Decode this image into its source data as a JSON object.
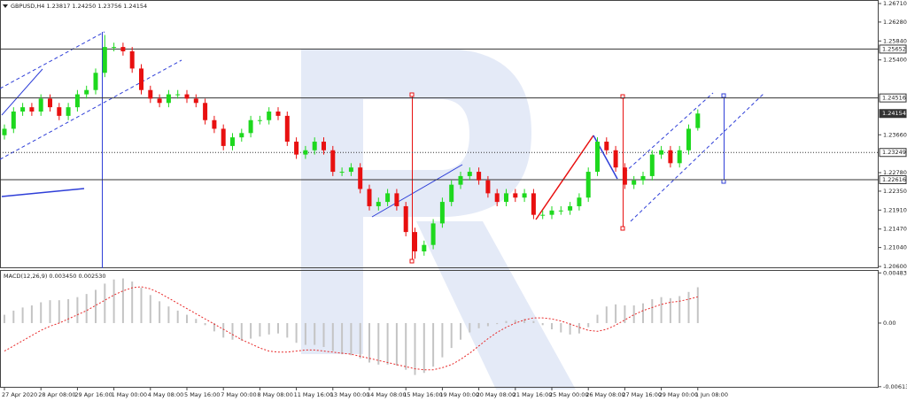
{
  "chart_data": [
    {
      "type": "candlestick",
      "title": "GBPUSD,H4 1.23817 1.24250 1.23756 1.24154",
      "categories": [
        "27 Apr 2020",
        null,
        null,
        null,
        "28 Apr 08:00",
        null,
        null,
        null,
        "29 Apr 16:00",
        null,
        null,
        null,
        "1 May 00:00",
        null,
        null,
        null,
        "4 May 08:00",
        null,
        null,
        null,
        "5 May 16:00",
        null,
        null,
        null,
        "7 May 00:00",
        null,
        null,
        null,
        "8 May 08:00",
        null,
        null,
        null,
        "11 May 16:00",
        null,
        null,
        null,
        "13 May 00:00",
        null,
        null,
        null,
        "14 May 08:00",
        null,
        null,
        null,
        "15 May 16:00",
        null,
        null,
        null,
        "19 May 00:00",
        null,
        null,
        null,
        "20 May 08:00",
        null,
        null,
        null,
        "21 May 16:00",
        null,
        null,
        null,
        "25 May 00:00",
        null,
        null,
        null,
        "26 May 08:00",
        null,
        null,
        null,
        "27 May 16:00",
        null,
        null,
        null,
        "29 May 00:00",
        null,
        null,
        null,
        "1 Jun 08:00"
      ],
      "open": [
        1.2365,
        1.238,
        1.242,
        1.243,
        1.242,
        1.245,
        1.243,
        1.241,
        1.243,
        1.246,
        1.247,
        1.251,
        1.257,
        1.257,
        1.256,
        1.252,
        1.247,
        1.245,
        1.244,
        1.246,
        1.246,
        1.245,
        1.244,
        1.24,
        1.238,
        1.234,
        1.236,
        1.237,
        1.24,
        1.24,
        1.242,
        1.241,
        1.235,
        1.232,
        1.233,
        1.235,
        1.233,
        1.228,
        1.228,
        1.229,
        1.224,
        1.22,
        1.221,
        1.223,
        1.22,
        1.214,
        1.2095,
        1.211,
        1.216,
        1.221,
        1.225,
        1.227,
        1.228,
        1.226,
        1.223,
        1.221,
        1.223,
        1.222,
        1.223,
        1.218,
        1.218,
        1.219,
        1.219,
        1.22,
        1.222,
        1.228,
        1.235,
        1.233,
        1.229,
        1.225,
        1.226,
        1.227,
        1.232,
        1.233,
        1.23,
        1.233,
        1.23817
      ],
      "high": [
        1.239,
        1.243,
        1.244,
        1.244,
        1.246,
        1.246,
        1.244,
        1.244,
        1.247,
        1.248,
        1.252,
        1.2598,
        1.258,
        1.258,
        1.257,
        1.253,
        1.248,
        1.246,
        1.247,
        1.247,
        1.247,
        1.246,
        1.245,
        1.241,
        1.239,
        1.237,
        1.238,
        1.241,
        1.241,
        1.243,
        1.243,
        1.242,
        1.236,
        1.234,
        1.236,
        1.236,
        1.234,
        1.229,
        1.23,
        1.23,
        1.225,
        1.222,
        1.224,
        1.224,
        1.221,
        1.215,
        1.212,
        1.217,
        1.222,
        1.226,
        1.228,
        1.229,
        1.229,
        1.227,
        1.224,
        1.224,
        1.224,
        1.224,
        1.224,
        1.219,
        1.22,
        1.22,
        1.221,
        1.223,
        1.229,
        1.236,
        1.236,
        1.234,
        1.23,
        1.227,
        1.228,
        1.233,
        1.234,
        1.234,
        1.234,
        1.239,
        1.2425
      ],
      "low": [
        1.2355,
        1.237,
        1.241,
        1.241,
        1.241,
        1.242,
        1.24,
        1.24,
        1.242,
        1.245,
        1.246,
        1.25,
        1.256,
        1.255,
        1.251,
        1.246,
        1.244,
        1.243,
        1.243,
        1.245,
        1.244,
        1.243,
        1.239,
        1.237,
        1.233,
        1.233,
        1.235,
        1.236,
        1.239,
        1.239,
        1.24,
        1.234,
        1.231,
        1.231,
        1.232,
        1.232,
        1.227,
        1.227,
        1.227,
        1.223,
        1.219,
        1.219,
        1.22,
        1.219,
        1.213,
        1.2078,
        1.2085,
        1.21,
        1.215,
        1.22,
        1.224,
        1.226,
        1.225,
        1.222,
        1.22,
        1.22,
        1.221,
        1.221,
        1.217,
        1.217,
        1.217,
        1.218,
        1.218,
        1.219,
        1.221,
        1.227,
        1.232,
        1.228,
        1.224,
        1.224,
        1.225,
        1.226,
        1.231,
        1.229,
        1.229,
        1.232,
        1.23756
      ],
      "close": [
        1.238,
        1.242,
        1.243,
        1.242,
        1.245,
        1.243,
        1.241,
        1.243,
        1.246,
        1.247,
        1.251,
        1.257,
        1.257,
        1.256,
        1.252,
        1.247,
        1.245,
        1.244,
        1.246,
        1.246,
        1.245,
        1.244,
        1.24,
        1.238,
        1.234,
        1.236,
        1.237,
        1.24,
        1.24,
        1.242,
        1.241,
        1.235,
        1.232,
        1.233,
        1.235,
        1.233,
        1.228,
        1.228,
        1.229,
        1.224,
        1.22,
        1.221,
        1.223,
        1.22,
        1.214,
        1.2095,
        1.211,
        1.216,
        1.221,
        1.225,
        1.227,
        1.228,
        1.226,
        1.223,
        1.221,
        1.223,
        1.222,
        1.223,
        1.218,
        1.218,
        1.219,
        1.219,
        1.22,
        1.222,
        1.228,
        1.235,
        1.233,
        1.229,
        1.225,
        1.226,
        1.227,
        1.232,
        1.233,
        1.23,
        1.233,
        1.238,
        1.24154
      ],
      "up_color": "#1ed81e",
      "down_color": "#e81010",
      "ylim": [
        1.206,
        1.2671
      ],
      "yticks": [
        {
          "value": 1.2671,
          "label": "1.26710"
        },
        {
          "value": 1.2628,
          "label": "1.26280"
        },
        {
          "value": 1.2584,
          "label": "1.25840"
        },
        {
          "value": 1.254,
          "label": "1.25400"
        },
        {
          "value": 1.2366,
          "label": "1.23660"
        },
        {
          "value": 1.2278,
          "label": "1.22780"
        },
        {
          "value": 1.2235,
          "label": "1.22350"
        },
        {
          "value": 1.2191,
          "label": "1.21910"
        },
        {
          "value": 1.2147,
          "label": "1.21470"
        },
        {
          "value": 1.2104,
          "label": "1.21040"
        },
        {
          "value": 1.206,
          "label": "1.20600"
        }
      ],
      "levels": [
        {
          "value": 1.25652,
          "line": "solid"
        },
        {
          "value": 1.24516,
          "line": "solid"
        },
        {
          "value": 1.24154,
          "line": "none"
        },
        {
          "value": 1.23249,
          "line": "dotted"
        },
        {
          "value": 1.22616,
          "line": "solid"
        }
      ],
      "grid": false
    },
    {
      "type": "macd",
      "title": "MACD(12,26,9) 0.003450 0.002530",
      "histogram": [
        0.0008,
        0.0012,
        0.0015,
        0.0017,
        0.002,
        0.0022,
        0.0022,
        0.0023,
        0.0025,
        0.0028,
        0.0032,
        0.0038,
        0.0042,
        0.0043,
        0.004,
        0.0034,
        0.0027,
        0.0021,
        0.0016,
        0.0012,
        0.0008,
        0.0004,
        -0.0002,
        -0.0008,
        -0.0014,
        -0.0016,
        -0.0017,
        -0.0015,
        -0.0013,
        -0.0011,
        -0.001,
        -0.0014,
        -0.0019,
        -0.0021,
        -0.0021,
        -0.0023,
        -0.0027,
        -0.003,
        -0.0031,
        -0.0034,
        -0.0038,
        -0.004,
        -0.004,
        -0.0041,
        -0.0045,
        -0.005,
        -0.0048,
        -0.0042,
        -0.0033,
        -0.0024,
        -0.0016,
        -0.0009,
        -0.0005,
        -0.0003,
        -0.0001,
        0.0002,
        0.0003,
        0.0004,
        0.0002,
        -0.0002,
        -0.0006,
        -0.0009,
        -0.0011,
        -0.001,
        -0.0004,
        0.0008,
        0.0016,
        0.0018,
        0.0017,
        0.0017,
        0.0019,
        0.0023,
        0.0025,
        0.0024,
        0.0026,
        0.003,
        0.00345
      ],
      "signal": [
        -0.0027,
        -0.0022,
        -0.0017,
        -0.0012,
        -0.0007,
        -0.0003,
        0,
        0.0004,
        0.0008,
        0.0012,
        0.0017,
        0.0022,
        0.0027,
        0.0031,
        0.0034,
        0.0035,
        0.0033,
        0.0029,
        0.0024,
        0.0019,
        0.0014,
        0.0009,
        0.0004,
        -0.0001,
        -0.0006,
        -0.0011,
        -0.0016,
        -0.002,
        -0.0024,
        -0.0027,
        -0.0028,
        -0.0028,
        -0.0027,
        -0.0026,
        -0.0026,
        -0.0027,
        -0.0028,
        -0.0029,
        -0.003,
        -0.0032,
        -0.0034,
        -0.0036,
        -0.0038,
        -0.004,
        -0.0042,
        -0.0044,
        -0.0045,
        -0.0045,
        -0.0043,
        -0.004,
        -0.0035,
        -0.0029,
        -0.0022,
        -0.0015,
        -0.0009,
        -0.0004,
        0,
        0.0003,
        0.0005,
        0.0005,
        0.0004,
        0.0002,
        -0.0001,
        -0.0004,
        -0.0007,
        -0.0008,
        -0.0006,
        -0.0002,
        0.0003,
        0.0008,
        0.0012,
        0.0015,
        0.0018,
        0.002,
        0.0021,
        0.0023,
        0.00253
      ],
      "histogram_color": "#c4c4c4",
      "signal_color": "#e82a2a",
      "ylim": [
        -0.0064,
        0.0052
      ],
      "yticks": [
        0.004834,
        {
          "value": 0,
          "label": "0.00"
        },
        -0.00613
      ]
    }
  ]
}
